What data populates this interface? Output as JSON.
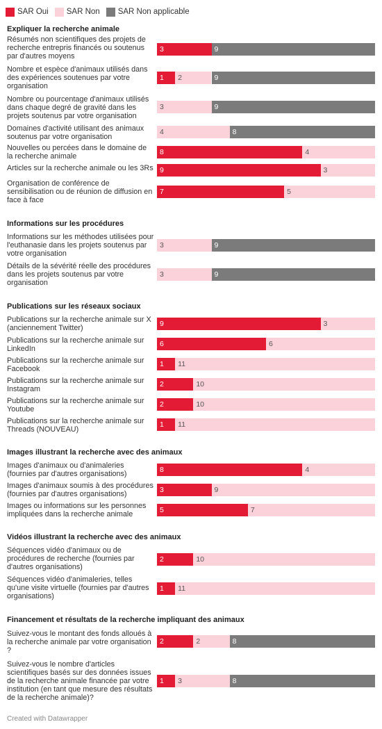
{
  "legend": [
    {
      "label": "SAR Oui",
      "color": "#e31b35"
    },
    {
      "label": "SAR Non",
      "color": "#fbd2d9"
    },
    {
      "label": "SAR Non applicable",
      "color": "#7b7b7b"
    }
  ],
  "footer": "Created with Datawrapper",
  "chart_data": {
    "type": "bar",
    "orientation": "horizontal",
    "stacked": true,
    "legend_position": "top-left",
    "series_names": [
      "SAR Oui",
      "SAR Non",
      "SAR Non applicable"
    ],
    "colors": [
      "#e31b35",
      "#fbd2d9",
      "#7b7b7b"
    ],
    "total": 12,
    "groups": [
      {
        "title": "Expliquer la recherche animale",
        "rows": [
          {
            "label": "Résumés non scientifiques des projets de recherche entrepris financés ou soutenus par d'autres moyens",
            "values": [
              3,
              0,
              9
            ],
            "shown_labels": [
              "3",
              null,
              "9"
            ]
          },
          {
            "label": "Nombre et espèce d'animaux utilisés dans des expériences soutenues par votre organisation",
            "values": [
              1,
              2,
              9
            ],
            "shown_labels": [
              "1",
              "2",
              "9"
            ]
          },
          {
            "label": "Nombre ou pourcentage d'animaux utilisés dans chaque degré de gravité dans les projets soutenus par votre organisation",
            "values": [
              0,
              3,
              9
            ],
            "shown_labels": [
              null,
              "3",
              "9"
            ]
          },
          {
            "label": "Domaines d'activité utilisant des animaux soutenus par votre organisation",
            "values": [
              0,
              4,
              8
            ],
            "shown_labels": [
              null,
              "4",
              "8"
            ]
          },
          {
            "label": "Nouvelles ou percées dans le domaine de la recherche animale",
            "values": [
              8,
              4,
              0
            ],
            "shown_labels": [
              "8",
              "4",
              null
            ]
          },
          {
            "label": "Articles sur la recherche animale ou les 3Rs",
            "values": [
              9,
              3,
              0
            ],
            "shown_labels": [
              "9",
              "3",
              null
            ]
          },
          {
            "label": "Organisation de conférence de sensibilisation ou de réunion de diffusion en face à face",
            "values": [
              7,
              5,
              0
            ],
            "shown_labels": [
              "7",
              "5",
              null
            ]
          }
        ]
      },
      {
        "title": "Informations sur les procédures",
        "rows": [
          {
            "label": "Informations sur les méthodes utilisées pour l'euthanasie dans les projets soutenus par votre organisation",
            "values": [
              0,
              3,
              9
            ],
            "shown_labels": [
              null,
              "3",
              "9"
            ]
          },
          {
            "label": "Détails de la sévérité réelle des procédures dans les projets soutenus par votre organisation",
            "values": [
              0,
              3,
              9
            ],
            "shown_labels": [
              null,
              "3",
              "9"
            ]
          }
        ]
      },
      {
        "title": "Publications sur les réseaux sociaux",
        "rows": [
          {
            "label": "Publications sur la recherche animale sur X (anciennement Twitter)",
            "values": [
              9,
              3,
              0
            ],
            "shown_labels": [
              "9",
              "3",
              null
            ]
          },
          {
            "label": "Publications sur la recherche animale sur LinkedIn",
            "values": [
              6,
              6,
              0
            ],
            "shown_labels": [
              "6",
              "6",
              null
            ]
          },
          {
            "label": "Publications sur la recherche animale sur Facebook",
            "values": [
              1,
              11,
              0
            ],
            "shown_labels": [
              "1",
              "11",
              null
            ]
          },
          {
            "label": "Publications sur la recherche animale sur Instagram",
            "values": [
              2,
              10,
              0
            ],
            "shown_labels": [
              "2",
              "10",
              null
            ]
          },
          {
            "label": "Publications sur la recherche animale sur Youtube",
            "values": [
              2,
              10,
              0
            ],
            "shown_labels": [
              "2",
              "10",
              null
            ]
          },
          {
            "label": "Publications sur la recherche animale sur Threads (NOUVEAU)",
            "values": [
              1,
              11,
              0
            ],
            "shown_labels": [
              "1",
              "11",
              null
            ]
          }
        ]
      },
      {
        "title": "Images illustrant la recherche avec des animaux",
        "rows": [
          {
            "label": "Images d'animaux ou d'animaleries (fournies par d'autres organisations)",
            "values": [
              8,
              4,
              0
            ],
            "shown_labels": [
              "8",
              "4",
              null
            ]
          },
          {
            "label": "Images d'animaux soumis à des procédures (fournies par d'autres organisations)",
            "values": [
              3,
              9,
              0
            ],
            "shown_labels": [
              "3",
              "9",
              null
            ]
          },
          {
            "label": "Images ou informations sur les personnes impliquées dans la recherche animale",
            "values": [
              5,
              7,
              0
            ],
            "shown_labels": [
              "5",
              "7",
              null
            ]
          }
        ]
      },
      {
        "title": "Vidéos illustrant la recherche avec des animaux",
        "rows": [
          {
            "label": "Séquences vidéo d'animaux ou de procédures de recherche (fournies par d'autres organisations)",
            "values": [
              2,
              10,
              0
            ],
            "shown_labels": [
              "2",
              "10",
              null
            ]
          },
          {
            "label": "Séquences vidéo d'animaleries, telles qu'une visite virtuelle (fournies par d'autres organisations)",
            "values": [
              1,
              11,
              0
            ],
            "shown_labels": [
              "1",
              "11",
              null
            ]
          }
        ]
      },
      {
        "title": "Financement et résultats de la recherche impliquant des animaux",
        "rows": [
          {
            "label": "Suivez-vous le montant des fonds alloués à la recherche animale par votre organisation ?",
            "values": [
              2,
              2,
              8
            ],
            "shown_labels": [
              "2",
              "2",
              "8"
            ]
          },
          {
            "label": "Suivez-vous le nombre d'articles scientifiques basés sur des données issues de la recherche animale financée par votre institution (en tant que mesure des résultats de la recherche animale)?",
            "values": [
              1,
              3,
              8
            ],
            "shown_labels": [
              "1",
              "3",
              "8"
            ]
          }
        ]
      }
    ]
  }
}
